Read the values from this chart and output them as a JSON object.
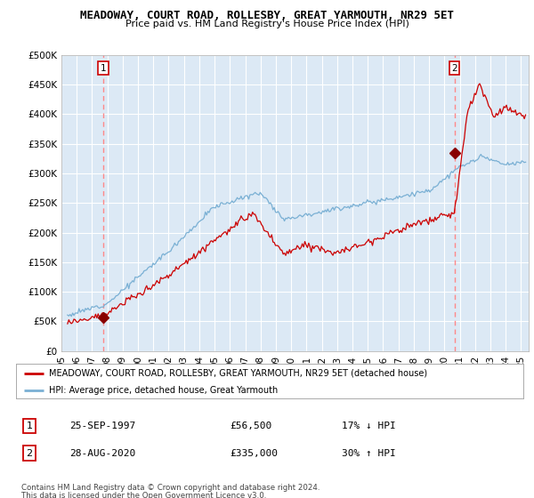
{
  "title": "MEADOWAY, COURT ROAD, ROLLESBY, GREAT YARMOUTH, NR29 5ET",
  "subtitle": "Price paid vs. HM Land Registry's House Price Index (HPI)",
  "ylim": [
    0,
    500000
  ],
  "yticks": [
    0,
    50000,
    100000,
    150000,
    200000,
    250000,
    300000,
    350000,
    400000,
    450000,
    500000
  ],
  "ytick_labels": [
    "£0",
    "£50K",
    "£100K",
    "£150K",
    "£200K",
    "£250K",
    "£300K",
    "£350K",
    "£400K",
    "£450K",
    "£500K"
  ],
  "xlim_start": 1995.3,
  "xlim_end": 2025.5,
  "purchase1_year": 1997.73,
  "purchase1_price": 56500,
  "purchase1_label": "1",
  "purchase1_date": "25-SEP-1997",
  "purchase1_price_str": "£56,500",
  "purchase1_pct": "17% ↓ HPI",
  "purchase2_year": 2020.65,
  "purchase2_price": 335000,
  "purchase2_label": "2",
  "purchase2_date": "28-AUG-2020",
  "purchase2_price_str": "£335,000",
  "purchase2_pct": "30% ↑ HPI",
  "red_line_color": "#cc0000",
  "blue_line_color": "#7ab0d4",
  "dashed_line_color": "#ff8888",
  "marker_color": "#880000",
  "legend_label_red": "MEADOWAY, COURT ROAD, ROLLESBY, GREAT YARMOUTH, NR29 5ET (detached house)",
  "legend_label_blue": "HPI: Average price, detached house, Great Yarmouth",
  "footer1": "Contains HM Land Registry data © Crown copyright and database right 2024.",
  "footer2": "This data is licensed under the Open Government Licence v3.0.",
  "background_color": "#ffffff",
  "chart_bg_color": "#dce9f5",
  "grid_color": "#ffffff",
  "xticks": [
    1995,
    1996,
    1997,
    1998,
    1999,
    2000,
    2001,
    2002,
    2003,
    2004,
    2005,
    2006,
    2007,
    2008,
    2009,
    2010,
    2011,
    2012,
    2013,
    2014,
    2015,
    2016,
    2017,
    2018,
    2019,
    2020,
    2021,
    2022,
    2023,
    2024,
    2025
  ]
}
